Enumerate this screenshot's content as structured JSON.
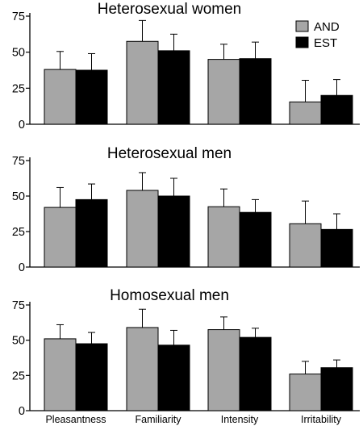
{
  "chart_data": [
    {
      "type": "bar",
      "title": "Heterosexual women",
      "categories": [
        "Pleasantness",
        "Familiarity",
        "Intensity",
        "Irritability"
      ],
      "series": [
        {
          "name": "AND",
          "color": "#a6a6a6",
          "values": [
            38,
            57.5,
            45,
            15.5
          ],
          "errors": [
            12.5,
            14.5,
            10.5,
            15
          ]
        },
        {
          "name": "EST",
          "color": "#000000",
          "values": [
            37.5,
            51,
            45.5,
            20
          ],
          "errors": [
            11.5,
            11.5,
            11.5,
            11
          ]
        }
      ],
      "ylim": [
        0,
        75
      ],
      "yticks": [
        "0",
        "25",
        "50",
        "75"
      ],
      "legend": "top-right",
      "grid": false
    },
    {
      "type": "bar",
      "title": "Heterosexual men",
      "categories": [
        "Pleasantness",
        "Familiarity",
        "Intensity",
        "Irritability"
      ],
      "series": [
        {
          "name": "AND",
          "color": "#a6a6a6",
          "values": [
            42,
            54,
            42.5,
            30.5
          ],
          "errors": [
            14,
            12.5,
            12.5,
            16
          ]
        },
        {
          "name": "EST",
          "color": "#000000",
          "values": [
            47.5,
            50,
            38.5,
            26.5
          ],
          "errors": [
            11,
            12.5,
            9,
            11
          ]
        }
      ],
      "ylim": [
        0,
        75
      ],
      "yticks": [
        "0",
        "25",
        "50",
        "75"
      ],
      "grid": false
    },
    {
      "type": "bar",
      "title": "Homosexual men",
      "categories": [
        "Pleasantness",
        "Familiarity",
        "Intensity",
        "Irritability"
      ],
      "series": [
        {
          "name": "AND",
          "color": "#a6a6a6",
          "values": [
            51,
            59,
            57.5,
            26
          ],
          "errors": [
            10,
            13,
            9,
            9
          ]
        },
        {
          "name": "EST",
          "color": "#000000",
          "values": [
            47.5,
            46.5,
            52,
            30.5
          ],
          "errors": [
            8,
            10.5,
            6.5,
            5.5
          ]
        }
      ],
      "ylim": [
        0,
        75
      ],
      "yticks": [
        "0",
        "25",
        "50",
        "75"
      ],
      "grid": false
    }
  ]
}
